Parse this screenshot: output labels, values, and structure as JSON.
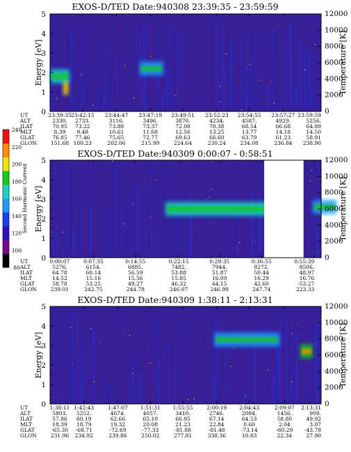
{
  "panels": [
    {
      "title": "EXOS-D/TED   Date:940308  23:39:35 - 23:59:59",
      "ephemeris_labels": [
        "UT",
        "ALT",
        "ILAT",
        "MLT",
        "GLAT",
        "GLON"
      ],
      "columns": [
        {
          "UT": "23:39:35",
          "ALT": "2330.",
          "ILAT": "70.95",
          "MLT": "8.39",
          "GLAT": "76.85",
          "GLON": "151.68"
        },
        {
          "UT": "23:42:15",
          "ALT": "2733.",
          "ILAT": "73.22",
          "MLT": "9.48",
          "GLAT": "77.46",
          "GLON": "180.23"
        },
        {
          "UT": "23:44:47",
          "ALT": "3116.",
          "ILAT": "73.88",
          "MLT": "10.61",
          "GLAT": "75.65",
          "GLON": "202.06"
        },
        {
          "UT": "23:47:19",
          "ALT": "3496.",
          "ILAT": "73.37",
          "MLT": "11.68",
          "GLAT": "72.77",
          "GLON": "215.99"
        },
        {
          "UT": "23:49:51",
          "ALT": "3870.",
          "ILAT": "72.08",
          "MLT": "12.56",
          "GLAT": "69.63",
          "GLON": "224.64"
        },
        {
          "UT": "23:52:23",
          "ALT": "4234.",
          "ILAT": "70.38",
          "MLT": "13.25",
          "GLAT": "66.60",
          "GLON": "230.24"
        },
        {
          "UT": "23:54:55",
          "ALT": "4587.",
          "ILAT": "68.54",
          "MLT": "13.77",
          "GLAT": "63.79",
          "GLON": "234.08"
        },
        {
          "UT": "23:57:27",
          "ALT": "4929.",
          "ILAT": "66.68",
          "MLT": "14.18",
          "GLAT": "61.23",
          "GLON": "236.84"
        },
        {
          "UT": "23:59:59",
          "ALT": "5256.",
          "ILAT": "64.89",
          "MLT": "14.50",
          "GLAT": "58.91",
          "GLON": "238.90"
        }
      ]
    },
    {
      "title": "EXOS-D/TED   Date:940309   0:00:07 - 0:58:51",
      "ephemeris_labels": [
        "UT",
        "ALT",
        "ILAT",
        "MLT",
        "GLAT",
        "GLON"
      ],
      "columns": [
        {
          "UT": "0:00:07",
          "ALT": "5276.",
          "ILAT": "64.78",
          "MLT": "14.52",
          "GLAT": "58.78",
          "GLON": "239.01"
        },
        {
          "UT": "0:07:35",
          "ALT": "6154.",
          "ILAT": "60.14",
          "MLT": "15.16",
          "GLAT": "53.25",
          "GLON": "242.75"
        },
        {
          "UT": "0:14:55",
          "ALT": "6885.",
          "ILAT": "56.59",
          "MLT": "15.56",
          "GLAT": "49.27",
          "GLON": "244.78"
        },
        {
          "UT": "0:22:15",
          "ALT": "7482.",
          "ILAT": "53.88",
          "MLT": "15.85",
          "GLAT": "46.32",
          "GLON": "246.07"
        },
        {
          "UT": "0:29:35",
          "ALT": "7944.",
          "ILAT": "51.87",
          "MLT": "16.09",
          "GLAT": "44.15",
          "GLON": "246.99"
        },
        {
          "UT": "0:36:55",
          "ALT": "8272.",
          "ILAT": "50.44",
          "MLT": "16.29",
          "GLAT": "42.60",
          "GLON": "247.74"
        },
        {
          "UT": "0:55:39",
          "ALT": "8506.",
          "ILAT": "48.97",
          "MLT": "16.76",
          "GLAT": "-53.27",
          "GLON": "223.33"
        }
      ]
    },
    {
      "title": "EXOS-D/TED   Date:940309   1:38:11 - 2:13:31",
      "ephemeris_labels": [
        "UT",
        "ALT",
        "ILAT",
        "MLT",
        "GLAT",
        "GLON"
      ],
      "columns": [
        {
          "UT": "1:38:11",
          "ALT": "5803.",
          "ILAT": "57.86",
          "MLT": "18.39",
          "GLAT": "-65.30",
          "GLON": "231.96"
        },
        {
          "UT": "1:42:43",
          "ALT": "5252.",
          "ILAT": "60.19",
          "MLT": "18.79",
          "GLAT": "-68.71",
          "GLON": "234.92"
        },
        {
          "UT": "1:47:07",
          "ALT": "4674.",
          "ILAT": "62.66",
          "MLT": "19.32",
          "GLAT": "-72.69",
          "GLON": "239.86"
        },
        {
          "UT": "1:51:31",
          "ALT": "4057.",
          "ILAT": "65.10",
          "MLT": "20.08",
          "GLAT": "-77.33",
          "GLON": "250.02"
        },
        {
          "UT": "1:55:55",
          "ALT": "3410.",
          "ILAT": "66.95",
          "MLT": "21.23",
          "GLAT": "-81.88",
          "GLON": "277.81"
        },
        {
          "UT": "2:00:19",
          "ALT": "2746.",
          "ILAT": "67.14",
          "MLT": "22.84",
          "GLAT": "-81.48",
          "GLON": "338.36"
        },
        {
          "UT": "2:04:43",
          "ALT": "2084.",
          "ILAT": "64.53",
          "MLT": "0.60",
          "GLAT": "-73.14",
          "GLON": "10.83"
        },
        {
          "UT": "2:09:07",
          "ALT": "1456.",
          "ILAT": "58.80",
          "MLT": "2.04",
          "GLAT": "-60.29",
          "GLON": "22.34"
        },
        {
          "UT": "2:13:31",
          "ALT": "908.",
          "ILAT": "49.92",
          "MLT": "3.07",
          "GLAT": "-43.78",
          "GLON": "27.90"
        }
      ]
    }
  ],
  "colorbar": {
    "label": "Second Harmonic Current",
    "ticks": [
      "80",
      "100",
      "120",
      "140",
      "160",
      "180",
      "200",
      "220",
      "240"
    ],
    "colors": [
      "#000000",
      "#7a0a8c",
      "#2d10c4",
      "#1a3cff",
      "#1a9cff",
      "#16d4c8",
      "#14c814",
      "#e8e800",
      "#ff8c00",
      "#ff1010"
    ]
  },
  "chart_data": [
    {
      "type": "heatmap",
      "title": "EXOS-D/TED   Date:940308  23:39:35 - 23:59:59",
      "ylabel": "Energy [eV]",
      "y2label": "Temperature [K]",
      "ylim": [
        0,
        5
      ],
      "y2lim": [
        0,
        12000
      ],
      "yticks": [
        "0",
        "1",
        "2",
        "3",
        "4",
        "5"
      ],
      "y2ticks": [
        "0",
        "2000",
        "4000",
        "6000",
        "8000",
        "10000",
        "12000"
      ],
      "xticks": [
        "23:39:35",
        "23:42:15",
        "23:44:47",
        "23:47:19",
        "23:49:51",
        "23:52:23",
        "23:54:55",
        "23:57:27",
        "23:59:59"
      ],
      "features": [
        {
          "ut_start": "23:39:35",
          "ut_end": "23:41:10",
          "energy_center": 1.8,
          "intensity": 160
        },
        {
          "ut_start": "23:40:40",
          "ut_end": "23:41:05",
          "energy_center": 1.2,
          "intensity": 200
        },
        {
          "ut_start": "23:46:30",
          "ut_end": "23:48:20",
          "energy_center": 2.2,
          "intensity": 150
        }
      ]
    },
    {
      "type": "heatmap",
      "title": "EXOS-D/TED   Date:940309   0:00:07 - 0:58:51",
      "ylabel": "Energy [eV]",
      "y2label": "Temperature [K]",
      "ylim": [
        0,
        5
      ],
      "y2lim": [
        0,
        12000
      ],
      "yticks": [
        "0",
        "1",
        "2",
        "3",
        "4",
        "5"
      ],
      "y2ticks": [
        "0",
        "2000",
        "4000",
        "6000",
        "8000",
        "10000",
        "12000"
      ],
      "xticks": [
        "0:00:07",
        "0:07:35",
        "0:14:55",
        "0:22:15",
        "0:29:35",
        "0:36:55",
        "0:55:39"
      ],
      "features": [
        {
          "ut_start": "0:20:00",
          "ut_end": "0:40:30",
          "energy_center": 2.5,
          "intensity": 160
        },
        {
          "ut_start": "0:55:00",
          "ut_end": "0:58:51",
          "energy_center": 2.6,
          "intensity": 150
        }
      ]
    },
    {
      "type": "heatmap",
      "title": "EXOS-D/TED   Date:940309   1:38:11 - 2:13:31",
      "ylabel": "Energy [eV]",
      "y2label": "Temperature [K]",
      "ylim": [
        0,
        5
      ],
      "y2lim": [
        0,
        12000
      ],
      "yticks": [
        "0",
        "1",
        "2",
        "3",
        "4",
        "5"
      ],
      "y2ticks": [
        "0",
        "2000",
        "4000",
        "6000",
        "8000",
        "10000",
        "12000"
      ],
      "xticks": [
        "1:38:11",
        "1:42:43",
        "1:47:07",
        "1:51:31",
        "1:55:55",
        "2:00:19",
        "2:04:43",
        "2:09:07",
        "2:13:31"
      ],
      "features": [
        {
          "ut_start": "2:00:00",
          "ut_end": "2:08:30",
          "energy_center": 3.3,
          "intensity": 150
        },
        {
          "ut_start": "2:11:00",
          "ut_end": "2:12:30",
          "energy_center": 2.7,
          "intensity": 190
        }
      ]
    }
  ]
}
